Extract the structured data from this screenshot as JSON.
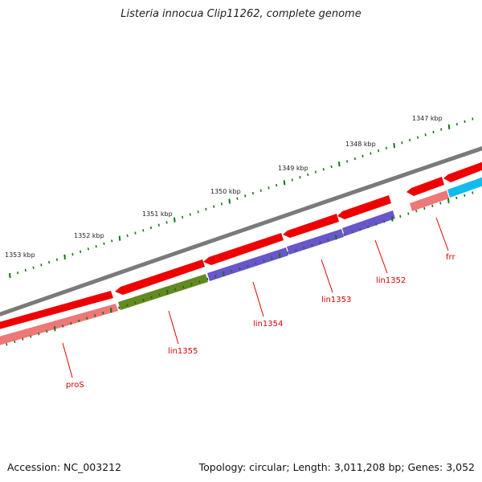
{
  "title": "Listeria innocua Clip11262, complete genome",
  "footer": {
    "accession": "Accession: NC_003212",
    "summary": "Topology: circular; Length: 3,011,208 bp; Genes: 3,052"
  },
  "ruler": {
    "labels": [
      "1347 kbp",
      "1348 kbp",
      "1349 kbp",
      "1350 kbp",
      "1351 kbp",
      "1352 kbp",
      "1353 kbp"
    ]
  },
  "colors": {
    "backbone": "#7a7a7a",
    "cds_red": "#ee0000",
    "pros": "#ee7777",
    "lin1355": "#668822",
    "lin_purple": "#6a55cc",
    "frr_cyan": "#11bbee",
    "tick_green": "#117711",
    "label_red": "#dd0000"
  },
  "genes": [
    {
      "name": "proS"
    },
    {
      "name": "lin1355"
    },
    {
      "name": "lin1354"
    },
    {
      "name": "lin1353"
    },
    {
      "name": "lin1352"
    },
    {
      "name": "frr"
    }
  ]
}
